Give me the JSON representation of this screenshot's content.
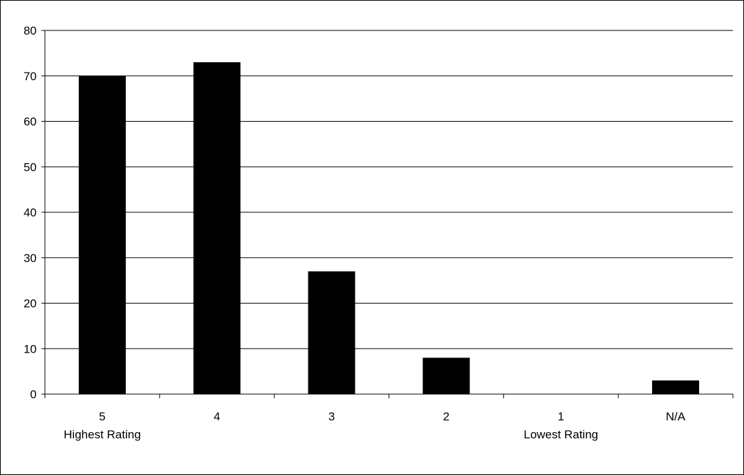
{
  "chart_data": {
    "type": "bar",
    "categories": [
      "5",
      "4",
      "3",
      "2",
      "1",
      "N/A"
    ],
    "category_sublabels": [
      "Highest Rating",
      "",
      "",
      "",
      "Lowest Rating",
      ""
    ],
    "values": [
      70,
      73,
      27,
      8,
      0,
      3
    ],
    "title": "",
    "xlabel": "",
    "ylabel": "",
    "ylim": [
      0,
      80
    ],
    "yticks": [
      0,
      10,
      20,
      30,
      40,
      50,
      60,
      70,
      80
    ],
    "grid": true,
    "legend": "none",
    "colors": {
      "bar": "#000000",
      "grid": "#000000",
      "background": "#ffffff"
    }
  }
}
